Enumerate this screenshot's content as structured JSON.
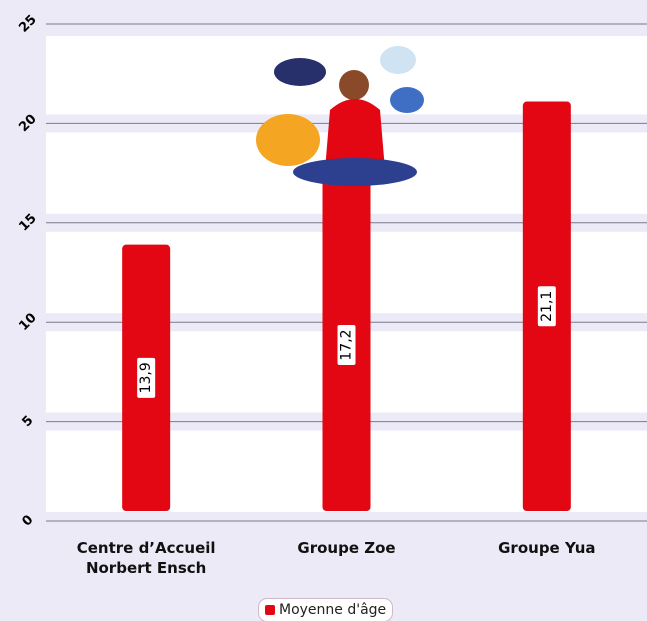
{
  "chart_data": {
    "type": "bar",
    "categories": [
      "Centre d’Accueil Norbert Ensch",
      "Groupe Zoe",
      "Groupe Yua"
    ],
    "series": [
      {
        "name": "Moyenne d'âge",
        "color": "#e30613",
        "values": [
          13.9,
          17.2,
          21.1
        ],
        "value_labels": [
          "13,9",
          "17,2",
          "21,1"
        ]
      }
    ],
    "ylim": [
      0,
      25
    ],
    "yticks": [
      0,
      5,
      10,
      15,
      20,
      25
    ],
    "grid": true
  }
}
